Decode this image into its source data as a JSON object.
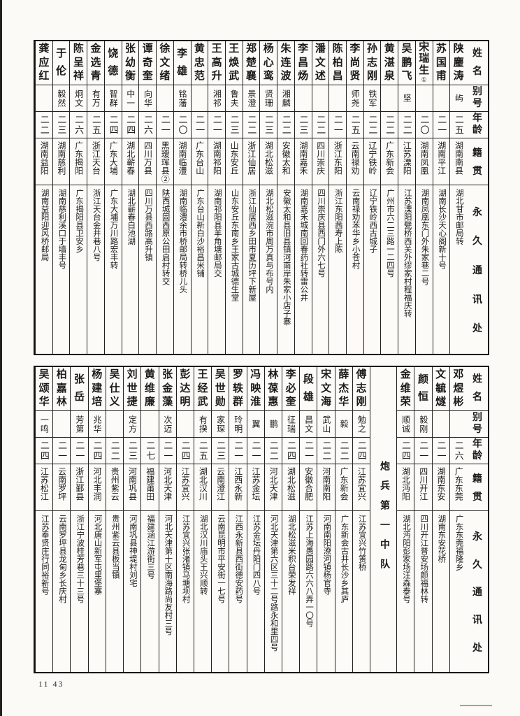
{
  "page": {
    "page_number": "11 43"
  },
  "header_labels": {
    "name": "姓名",
    "alias": "别号",
    "age": "年龄",
    "native": "籍贯",
    "address": "永久通讯处"
  },
  "section_divider": {
    "label": "炮兵第一中队"
  },
  "tables": [
    {
      "entries": [
        {
          "name": "陕麈涛",
          "alias": "屿",
          "age": "二五",
          "native": "湖南南县",
          "address": "湖北甘市邮局转"
        },
        {
          "name": "苏国甫",
          "alias": "",
          "age": "二一",
          "native": "湖南平江",
          "address": "湖南长沙天心阁新十号"
        },
        {
          "name": "宋瑞生①",
          "alias": "",
          "age": "二〇",
          "native": "湖南凤凰",
          "address": "湖南凤凰东门外朱家巷二号"
        },
        {
          "name": "吴鹏飞",
          "alias": "坚",
          "age": "二二",
          "native": "江苏溧阳",
          "address": "江苏溧阳甓桥西关外缪家村程福庆转"
        },
        {
          "name": "黄湛泉",
          "alias": "",
          "age": "二二",
          "native": "广东新会",
          "address": "广州市六二三路一二四号"
        },
        {
          "name": "孙志刚",
          "alias": "铁军",
          "age": "二二",
          "native": "辽宁铁岭",
          "address": "辽宁铁岭西古城子"
        },
        {
          "name": "李尚贤",
          "alias": "师尧",
          "age": "二五",
          "native": "云南禄劝",
          "address": "云南禄劝苯华乡小苍村"
        },
        {
          "name": "陈柏昌",
          "alias": "",
          "age": "二一",
          "native": "浙江东阳",
          "address": "浙江东阳茜寿上陈"
        },
        {
          "name": "潘文述",
          "alias": "",
          "age": "二二",
          "native": "四川崇庆",
          "address": "四川崇庆县西门外六七号"
        },
        {
          "name": "李昌炀",
          "alias": "",
          "age": "二三",
          "native": "湖南嘉禾",
          "address": "湖南嘉禾城南回春药社转雷公井"
        },
        {
          "name": "朱连波",
          "alias": "湘麟",
          "age": "二二",
          "native": "安徽太和",
          "address": "安徽太和县旧县镇河南岸朱家小店子寨"
        },
        {
          "name": "杨心鸾",
          "alias": "贤珊",
          "age": "二三",
          "native": "湖北松滋",
          "address": "湖北松滋涴市周万真与布号内"
        },
        {
          "name": "郑楚襄",
          "alias": "景澄",
          "age": "二二",
          "native": "浙江仙居",
          "address": "浙江仙居西乡田市夏历坪下新屋"
        },
        {
          "name": "王焕武",
          "alias": "鲁夫",
          "age": "二三",
          "native": "山东安丘",
          "address": "山东安丘东南乡王家古城德生堂"
        },
        {
          "name": "王高升",
          "alias": "湘祁",
          "age": "二一",
          "native": "湖南祁阳",
          "address": "湖南祁阳县羊角塘邮局交"
        },
        {
          "name": "黄忠范",
          "alias": "",
          "age": "二一",
          "native": "广东台山",
          "address": "广东台山新白沙裕昌米铺"
        },
        {
          "name": "李雄",
          "alias": "铭藩",
          "age": "二〇",
          "native": "湖南临澧",
          "address": "湖南临澧余市桥邮局转桥儿头"
        },
        {
          "name": "徐文绪",
          "alias": "",
          "age": "二一",
          "native": "黑瑷珲县②",
          "address": "陕西城固西原公田启村转交"
        },
        {
          "name": "谭奇奎",
          "alias": "向华",
          "age": "二六",
          "native": "四川万县",
          "address": "四川万县西路高升镇"
        },
        {
          "name": "张幼衡",
          "alias": "中一",
          "age": "二四",
          "native": "湖北蕲春",
          "address": "湖北蕲春白池湖"
        },
        {
          "name": "饶德",
          "alias": "智群",
          "age": "二四",
          "native": "广东大埔",
          "address": "广东大埔万川路宏丰转"
        },
        {
          "name": "金选青",
          "alias": "有万",
          "age": "二五",
          "native": "浙江天台",
          "address": "浙江天台金井巷八号"
        },
        {
          "name": "陈呈祥",
          "alias": "炯文",
          "age": "二六",
          "native": "广东揭阳",
          "address": "广东揭阳县卫安乡"
        },
        {
          "name": "于伦",
          "alias": "毅然",
          "age": "二三",
          "native": "湖南慈利",
          "address": "湖南慈利溪口于墙丰号"
        },
        {
          "name": "龚应红",
          "alias": "",
          "age": "二二",
          "native": "湖南益阳",
          "address": "湖南益阳迎风桥邮局"
        }
      ]
    },
    {
      "entries": [
        {
          "name": "邓煜彬",
          "alias": "",
          "age": "二六",
          "native": "广东东莞",
          "address": "广东东莞福隆乡"
        },
        {
          "name": "文毓燧",
          "alias": "",
          "age": "二一",
          "native": "湖南东安",
          "address": "湖南东安花桥"
        },
        {
          "name": "颜恒",
          "alias": "毅刚",
          "age": "二一",
          "native": "四川开江",
          "address": "四川开江普安场颜福林转"
        },
        {
          "name": "金维荣",
          "alias": "顺诚",
          "age": "二四",
          "native": "湖北沔阳",
          "address": "湖北沔阳彭家场汪森泰号"
        },
        {
          "divider": true
        },
        {
          "name": "傅志刚",
          "alias": "勉之",
          "age": "二四",
          "native": "江苏宜兴",
          "address": "江苏宜兴竹箦桥"
        },
        {
          "name": "薛杰华",
          "alias": "毅",
          "age": "二二",
          "native": "广东新会",
          "address": "广东新会古井长沙乡其庐"
        },
        {
          "name": "宋文海",
          "alias": "武山",
          "age": "二二",
          "native": "河南南阳",
          "address": "河南南阳潦河镇杨官寺"
        },
        {
          "name": "段雄",
          "alias": "昌文",
          "age": "二一",
          "native": "安徽合肥",
          "address": "江苏上海愚园路六六八弄一〇号"
        },
        {
          "name": "李必奎",
          "alias": "征瑞",
          "age": "二四",
          "native": "湖北松滋",
          "address": "湖北松滋米积台荣发祥"
        },
        {
          "name": "林葆惠",
          "alias": "鹏",
          "age": "二二",
          "native": "河北天津",
          "address": "河北天津第六区三十二号路永和里四号"
        },
        {
          "name": "冯映淮",
          "alias": "翼",
          "age": "二一",
          "native": "江苏金坛",
          "address": "江苏金坛丹阳门四八号"
        },
        {
          "name": "罗轶群",
          "alias": "玲明",
          "age": "二一",
          "native": "江西永新",
          "address": "江西永新县西街德安药号"
        },
        {
          "name": "吴世勋",
          "alias": "家琛",
          "age": "二三",
          "native": "云南澄江",
          "address": "云南昆明市平安街一七号"
        },
        {
          "name": "王经武",
          "alias": "有揆",
          "age": "二五",
          "native": "湖北汉川",
          "address": "湖北汉川庙头王兴顺转"
        },
        {
          "name": "彭达明",
          "alias": "",
          "age": "二四",
          "native": "江苏宜兴",
          "address": "江苏宜兴张渚镇马塘坝村"
        },
        {
          "name": "张金藻",
          "alias": "次迈",
          "age": "二一",
          "native": "河北天津",
          "address": "河北天津第十区南海路尚友村三号"
        },
        {
          "name": "黄维廉",
          "alias": "",
          "age": "二七",
          "native": "福建莆田",
          "address": "福建涵江游街三号"
        },
        {
          "name": "刘世捷",
          "alias": "定方",
          "age": "二三",
          "native": "河南巩县",
          "address": "河南巩县神堤村刘宅"
        },
        {
          "name": "吴仕义",
          "alias": "",
          "age": "二二",
          "native": "贵州紫云",
          "address": "贵州紫云县板当镇"
        },
        {
          "name": "杨建培",
          "alias": "兆华",
          "age": "二四",
          "native": "河北丰润",
          "address": "河北唐山新军屯里堡寨"
        },
        {
          "name": "张岳",
          "alias": "芳第",
          "age": "二一",
          "native": "浙江鄞县",
          "address": "浙江宁波桂芳巷三十三号"
        },
        {
          "name": "柏嘉林",
          "alias": "",
          "age": "二一",
          "native": "云南罗坪",
          "address": "云南罗坪县龙甸乡长庆村"
        },
        {
          "name": "吴颂华",
          "alias": "一鸣",
          "age": "二四",
          "native": "江苏松江",
          "address": "江苏奉贤庄行同裕新号"
        }
      ]
    }
  ]
}
